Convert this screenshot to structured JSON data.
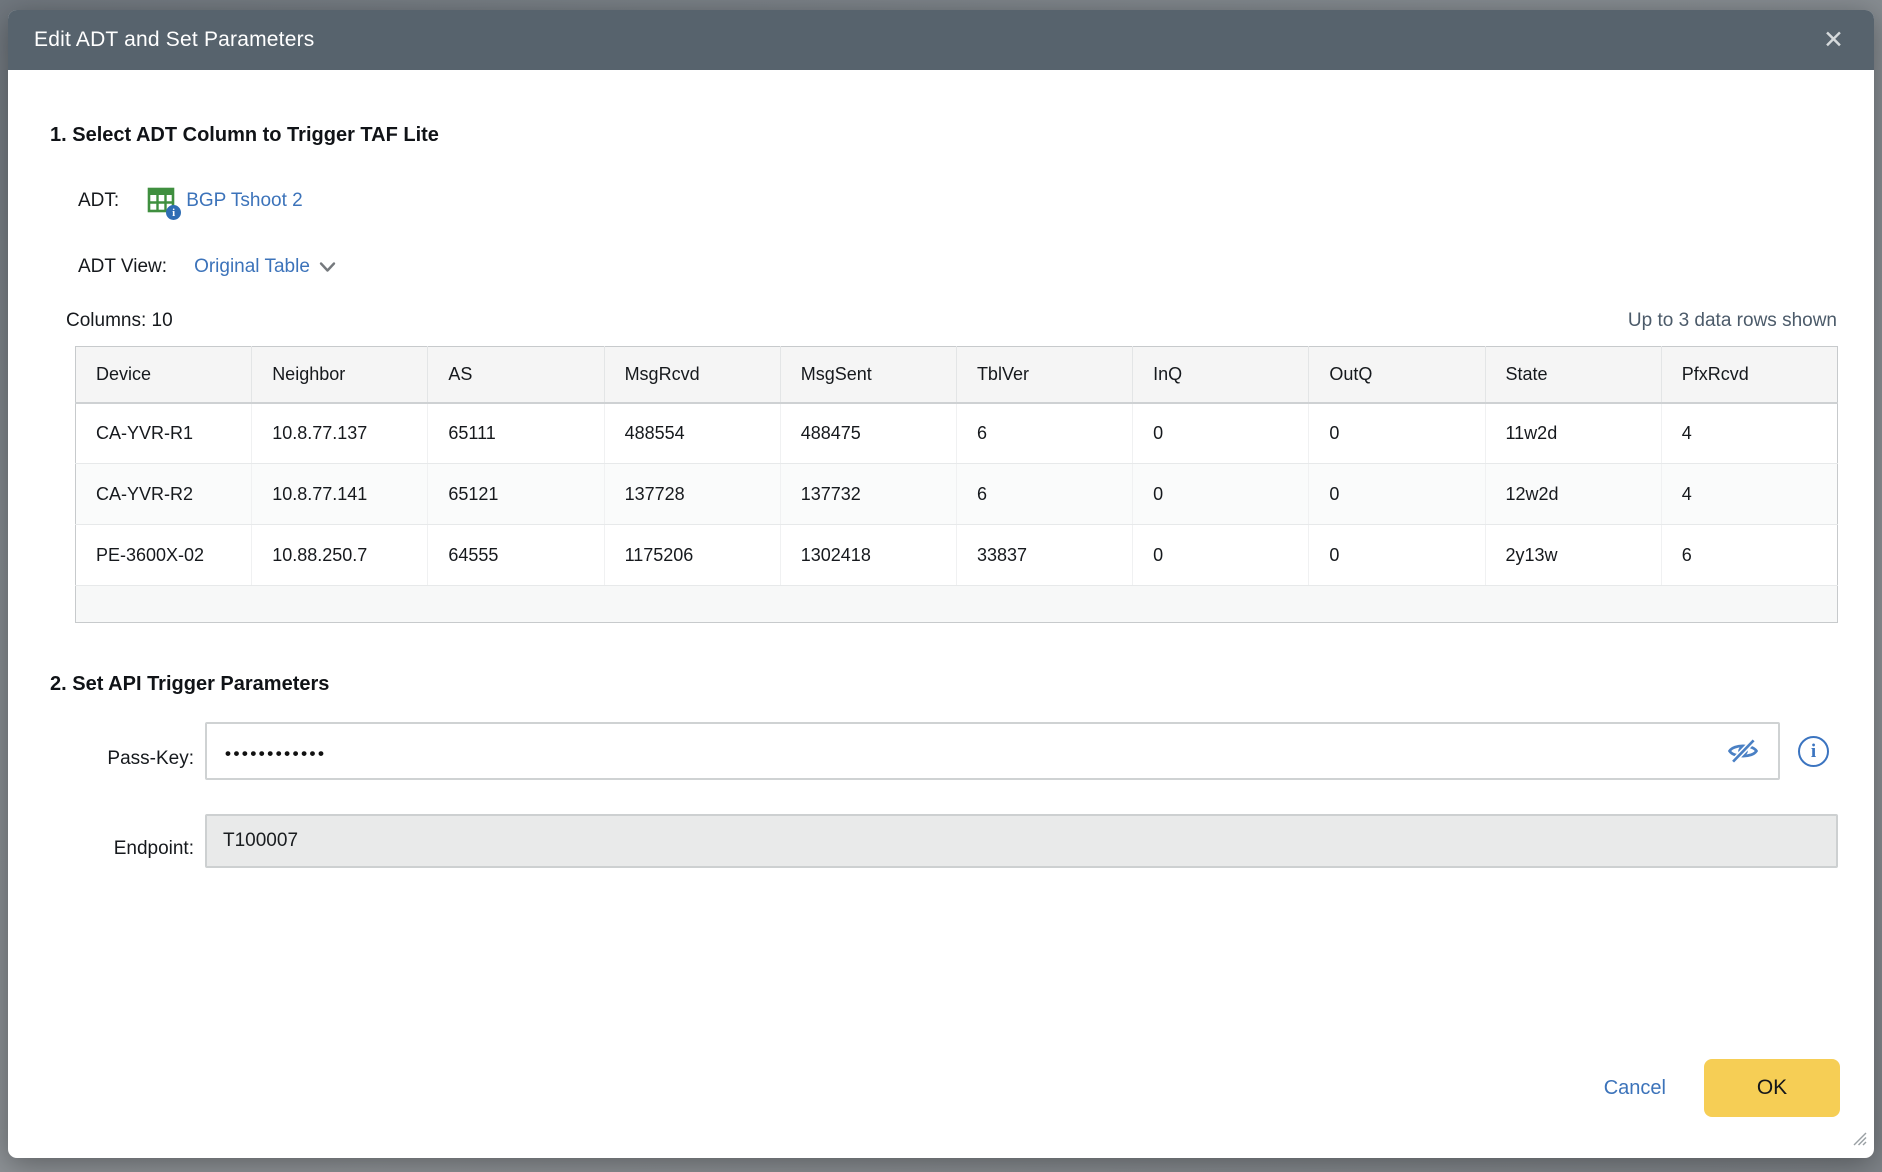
{
  "dialog": {
    "title": "Edit ADT and Set Parameters",
    "close_glyph": "✕"
  },
  "section1": {
    "heading": "1. Select ADT Column to Trigger TAF Lite",
    "adt_label": "ADT:",
    "adt_link": "BGP Tshoot 2",
    "adt_view_label": "ADT View:",
    "adt_view_value": "Original Table",
    "columns_label": "Columns: 10",
    "rows_note": "Up to 3 data rows shown",
    "table": {
      "headers": [
        "Device",
        "Neighbor",
        "AS",
        "MsgRcvd",
        "MsgSent",
        "TblVer",
        "InQ",
        "OutQ",
        "State",
        "PfxRcvd"
      ],
      "rows": [
        [
          "CA-YVR-R1",
          "10.8.77.137",
          "65111",
          "488554",
          "488475",
          "6",
          "0",
          "0",
          "11w2d",
          "4"
        ],
        [
          "CA-YVR-R2",
          "10.8.77.141",
          "65121",
          "137728",
          "137732",
          "6",
          "0",
          "0",
          "12w2d",
          "4"
        ],
        [
          "PE-3600X-02",
          "10.88.250.7",
          "64555",
          "1175206",
          "1302418",
          "33837",
          "0",
          "0",
          "2y13w",
          "6"
        ]
      ]
    }
  },
  "section2": {
    "heading": "2. Set API Trigger Parameters",
    "passkey_label": "Pass-Key:",
    "passkey_masked_value": "••••••••••••",
    "endpoint_label": "Endpoint:",
    "endpoint_value": "T100007"
  },
  "footer": {
    "cancel_label": "Cancel",
    "ok_label": "OK"
  },
  "icons": {
    "adt": "table-grid-with-info-badge",
    "adt_badge_glyph": "i",
    "info_glyph": "i",
    "view_dropdown": "chevron-down",
    "passkey_visibility": "eye-slash",
    "corner": "resize-grip"
  },
  "colors": {
    "header_bg": "#57636d",
    "link_blue": "#3c73ba",
    "note_slate": "#4c5b6a",
    "ok_yellow": "#f6ce55",
    "adt_icon_green": "#3f8f3f",
    "badge_blue": "#2f6db4",
    "endpoint_bg": "#e9eaea"
  }
}
